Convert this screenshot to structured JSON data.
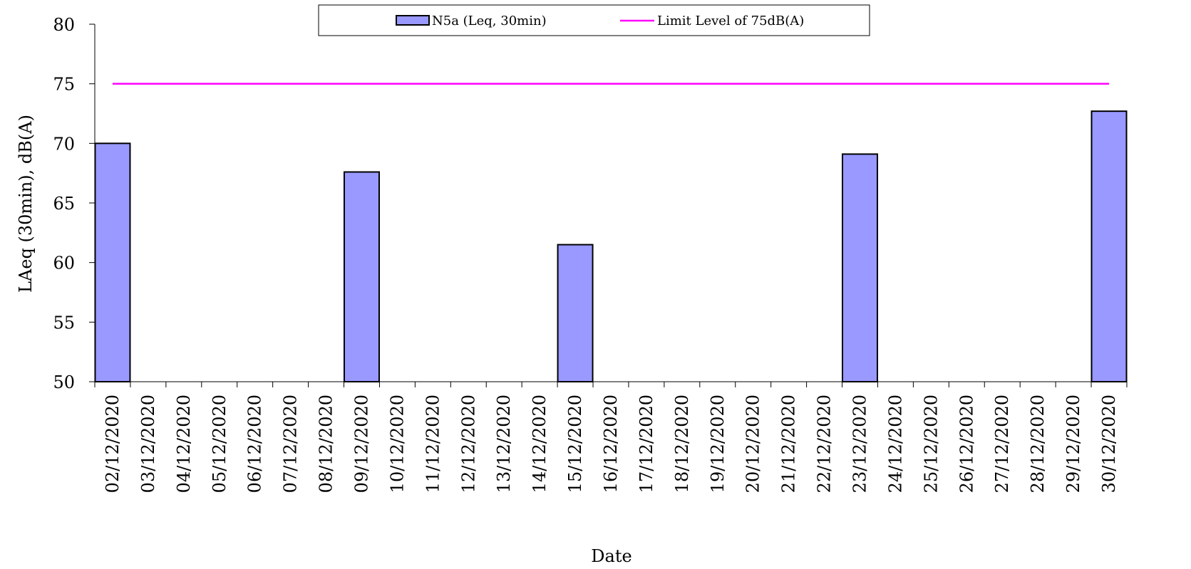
{
  "chart_data": {
    "type": "bar",
    "xlabel": "Date",
    "ylabel": "LAeq (30min), dB(A)",
    "ylim": [
      50,
      80
    ],
    "yticks": [
      50,
      55,
      60,
      65,
      70,
      75,
      80
    ],
    "categories": [
      "02/12/2020",
      "03/12/2020",
      "04/12/2020",
      "05/12/2020",
      "06/12/2020",
      "07/12/2020",
      "08/12/2020",
      "09/12/2020",
      "10/12/2020",
      "11/12/2020",
      "12/12/2020",
      "13/12/2020",
      "14/12/2020",
      "15/12/2020",
      "16/12/2020",
      "17/12/2020",
      "18/12/2020",
      "19/12/2020",
      "20/12/2020",
      "21/12/2020",
      "22/12/2020",
      "23/12/2020",
      "24/12/2020",
      "25/12/2020",
      "26/12/2020",
      "27/12/2020",
      "28/12/2020",
      "29/12/2020",
      "30/12/2020"
    ],
    "series": [
      {
        "name": "N5a (Leq, 30min)",
        "type": "bar",
        "color": "#9999ff",
        "values": [
          70.0,
          null,
          null,
          null,
          null,
          null,
          null,
          67.6,
          null,
          null,
          null,
          null,
          null,
          61.5,
          null,
          null,
          null,
          null,
          null,
          null,
          null,
          69.1,
          null,
          null,
          null,
          null,
          null,
          null,
          72.7
        ]
      },
      {
        "name": "Limit Level of 75dB(A)",
        "type": "line",
        "color": "#ff00ff",
        "value": 75
      }
    ],
    "legend": "top-center",
    "grid": false
  }
}
